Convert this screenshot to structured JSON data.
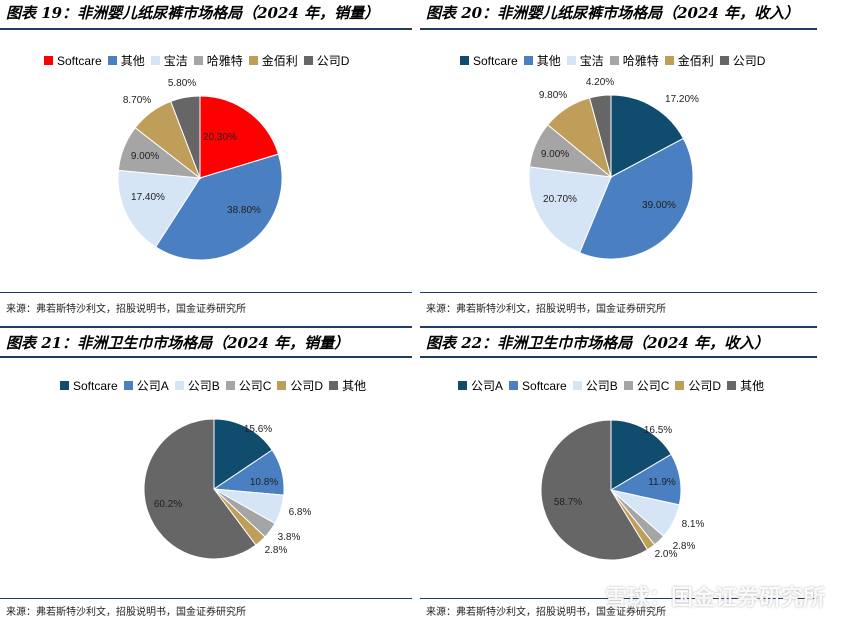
{
  "charts": [
    {
      "title": "图表 19：非洲婴儿纸尿裤市场格局（2024 年，销量）",
      "source": "来源：弗若斯特沙利文，招股说明书，国金证券研究所",
      "chart_data": {
        "type": "pie",
        "labels": [
          "Softcare",
          "其他",
          "宝洁",
          "哈雅特",
          "金佰利",
          "公司D"
        ],
        "values": [
          20.3,
          38.8,
          17.4,
          9.0,
          8.7,
          5.8
        ],
        "value_labels": [
          "20.30%",
          "38.80%",
          "17.40%",
          "9.00%",
          "8.70%",
          "5.80%"
        ],
        "colors": [
          "#ff0000",
          "#4a7fc1",
          "#d6e5f5",
          "#a5a5a5",
          "#bf9e5a",
          "#666666"
        ]
      }
    },
    {
      "title": "图表 20：非洲婴儿纸尿裤市场格局（2024 年，收入）",
      "source": "来源：弗若斯特沙利文，招股说明书，国金证券研究所",
      "chart_data": {
        "type": "pie",
        "labels": [
          "Softcare",
          "其他",
          "宝洁",
          "哈雅特",
          "金佰利",
          "公司D"
        ],
        "values": [
          17.2,
          39.0,
          20.7,
          9.0,
          9.8,
          4.2
        ],
        "value_labels": [
          "17.20%",
          "39.00%",
          "20.70%",
          "9.00%",
          "9.80%",
          "4.20%"
        ],
        "colors": [
          "#0f4c6e",
          "#4a7fc1",
          "#d6e5f5",
          "#a5a5a5",
          "#bf9e5a",
          "#666666"
        ]
      }
    },
    {
      "title": "图表 21：非洲卫生巾市场格局（2024 年，销量）",
      "source": "来源：弗若斯特沙利文，招股说明书，国金证券研究所",
      "chart_data": {
        "type": "pie",
        "labels": [
          "Softcare",
          "公司A",
          "公司B",
          "公司C",
          "公司D",
          "其他"
        ],
        "values": [
          15.6,
          10.8,
          6.8,
          3.8,
          2.8,
          60.2
        ],
        "value_labels": [
          "15.6%",
          "10.8%",
          "6.8%",
          "3.8%",
          "2.8%",
          "60.2%"
        ],
        "colors": [
          "#0f4c6e",
          "#4a7fc1",
          "#d6e5f5",
          "#a5a5a5",
          "#bf9e5a",
          "#666666"
        ]
      }
    },
    {
      "title": "图表 22：非洲卫生巾市场格局（2024 年，收入）",
      "source": "来源：弗若斯特沙利文，招股说明书，国金证券研究所",
      "chart_data": {
        "type": "pie",
        "labels": [
          "公司A",
          "Softcare",
          "公司B",
          "公司C",
          "公司D",
          "其他"
        ],
        "values": [
          16.5,
          11.9,
          8.1,
          2.8,
          2.0,
          58.7
        ],
        "value_labels": [
          "16.5%",
          "11.9%",
          "8.1%",
          "2.8%",
          "2.0%",
          "58.7%"
        ],
        "colors": [
          "#0f4c6e",
          "#4a7fc1",
          "#d6e5f5",
          "#a5a5a5",
          "#bf9e5a",
          "#666666"
        ]
      }
    }
  ],
  "watermark": "雪球：国金证券研究所"
}
